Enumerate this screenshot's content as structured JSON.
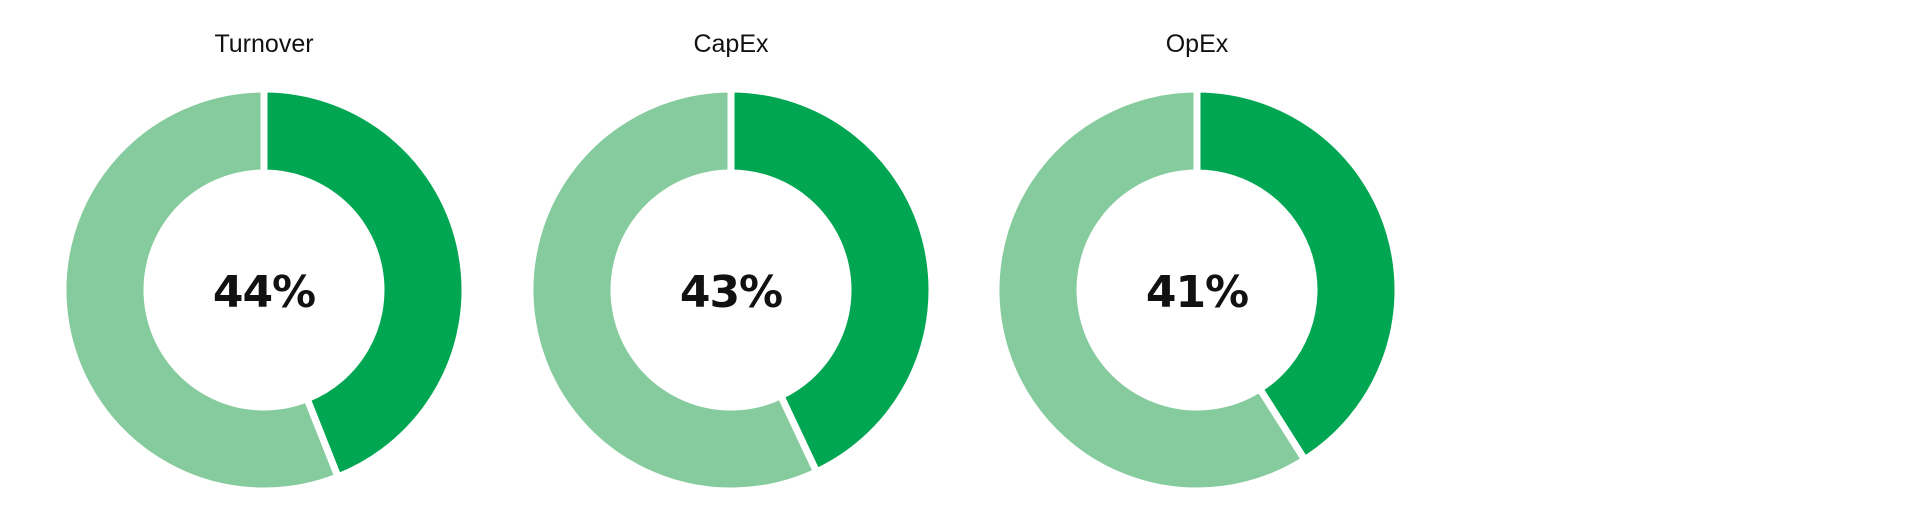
{
  "chart_data": [
    {
      "type": "pie",
      "title": "Turnover",
      "center_label": "44%",
      "slices": [
        {
          "value": 44,
          "color": "#00A651"
        },
        {
          "value": 56,
          "color": "#86CB9D"
        }
      ]
    },
    {
      "type": "pie",
      "title": "CapEx",
      "center_label": "43%",
      "slices": [
        {
          "value": 43,
          "color": "#00A651"
        },
        {
          "value": 57,
          "color": "#86CB9D"
        }
      ]
    },
    {
      "type": "pie",
      "title": "OpEx",
      "center_label": "41%",
      "slices": [
        {
          "value": 41,
          "color": "#00A651"
        },
        {
          "value": 59,
          "color": "#86CB9D"
        }
      ]
    }
  ]
}
